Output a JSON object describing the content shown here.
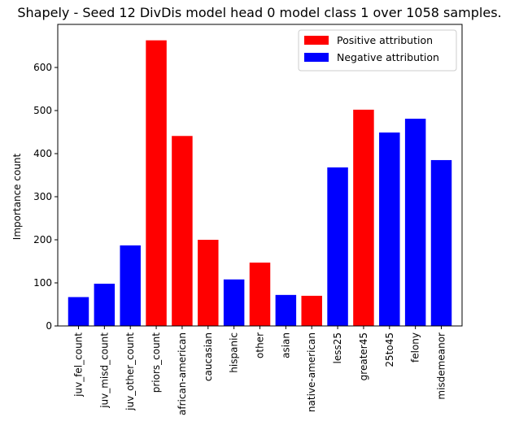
{
  "chart_data": {
    "type": "bar",
    "title": "Shapely - Seed 12 DivDis model head 0 model class 1 over 1058 samples.",
    "xlabel": "",
    "ylabel": "Importance count",
    "ylim": [
      0,
      700
    ],
    "yticks": [
      0,
      100,
      200,
      300,
      400,
      500,
      600
    ],
    "grid": false,
    "legend_position": "top-right",
    "categories": [
      "juv_fel_count",
      "juv_misd_count",
      "juv_other_count",
      "priors_count",
      "african-american",
      "caucasian",
      "hispanic",
      "other",
      "asian",
      "native-american",
      "less25",
      "greater45",
      "25to45",
      "felony",
      "misdemeanor"
    ],
    "values": [
      67,
      98,
      187,
      663,
      441,
      200,
      108,
      147,
      72,
      70,
      368,
      502,
      449,
      481,
      385
    ],
    "bar_attribution": [
      "negative",
      "negative",
      "negative",
      "positive",
      "positive",
      "positive",
      "negative",
      "positive",
      "negative",
      "positive",
      "negative",
      "positive",
      "negative",
      "negative",
      "negative"
    ],
    "series": [
      {
        "name": "Positive attribution",
        "key": "positive",
        "color": "#ff0000"
      },
      {
        "name": "Negative attribution",
        "key": "negative",
        "color": "#0000ff"
      }
    ]
  }
}
